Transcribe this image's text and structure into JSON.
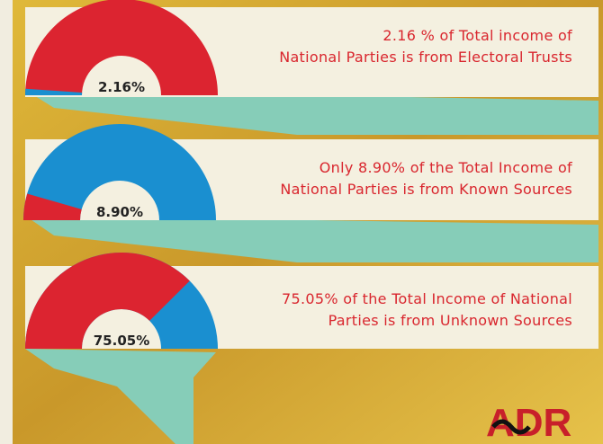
{
  "chart_data": [
    {
      "type": "gauge",
      "values": [
        2.16
      ],
      "value_labels": [
        "2.16%"
      ],
      "color": "#1a8fd0",
      "track_color": "#dc2430",
      "caption": [
        "2.16 % of Total income of",
        "National Parties is from Electoral Trusts"
      ]
    },
    {
      "type": "gauge",
      "values": [
        8.9
      ],
      "value_labels": [
        "8.90%"
      ],
      "color": "#dc2430",
      "track_color": "#1a8fd0",
      "caption": [
        "Only 8.90% of the Total Income of",
        "National Parties is from Known Sources"
      ]
    },
    {
      "type": "gauge",
      "values": [
        75.05
      ],
      "value_labels": [
        "75.05%"
      ],
      "color": "#dc2430",
      "track_color": "#1a8fd0",
      "caption": [
        "75.05% of the Total Income of National",
        "Parties is from Unknown Sources"
      ]
    }
  ],
  "logo": "ADR"
}
